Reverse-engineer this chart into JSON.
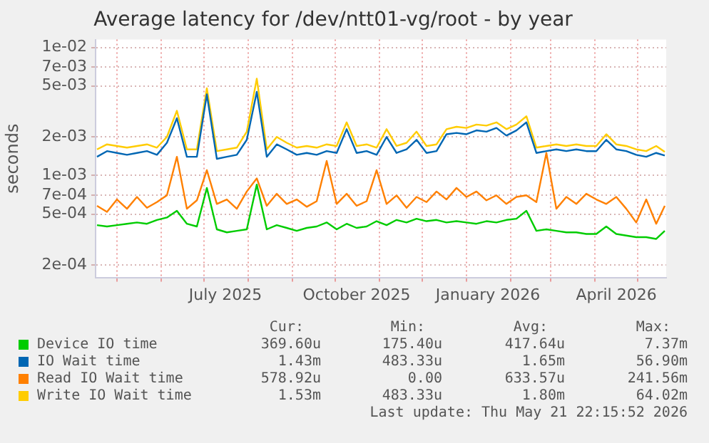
{
  "chart_data": {
    "type": "line",
    "title": "Average latency for /dev/ntt01-vg/root - by year",
    "ylabel": "seconds",
    "x": [
      "2025-04-17",
      "2025-04-24",
      "2025-05-01",
      "2025-05-08",
      "2025-05-15",
      "2025-05-22",
      "2025-05-29",
      "2025-06-05",
      "2025-06-12",
      "2025-06-19",
      "2025-06-26",
      "2025-07-03",
      "2025-07-10",
      "2025-07-17",
      "2025-07-24",
      "2025-07-31",
      "2025-08-07",
      "2025-08-14",
      "2025-08-21",
      "2025-08-28",
      "2025-09-04",
      "2025-09-11",
      "2025-09-18",
      "2025-09-25",
      "2025-10-02",
      "2025-10-09",
      "2025-10-16",
      "2025-10-23",
      "2025-10-30",
      "2025-11-06",
      "2025-11-13",
      "2025-11-20",
      "2025-11-27",
      "2025-12-04",
      "2025-12-11",
      "2025-12-18",
      "2025-12-25",
      "2026-01-01",
      "2026-01-08",
      "2026-01-15",
      "2026-01-22",
      "2026-01-29",
      "2026-02-05",
      "2026-02-12",
      "2026-02-19",
      "2026-02-26",
      "2026-03-05",
      "2026-03-12",
      "2026-03-19",
      "2026-03-26",
      "2026-04-02",
      "2026-04-09",
      "2026-04-16",
      "2026-04-23",
      "2026-04-30",
      "2026-05-07",
      "2026-05-14",
      "2026-05-20"
    ],
    "series": [
      {
        "name": "Device IO time",
        "color": "#00cc00",
        "values": [
          0.00041,
          0.0004,
          0.00041,
          0.00042,
          0.00043,
          0.00042,
          0.00045,
          0.00047,
          0.00053,
          0.00042,
          0.0004,
          0.0008,
          0.00038,
          0.00036,
          0.00037,
          0.00038,
          0.00085,
          0.00038,
          0.00041,
          0.00039,
          0.00037,
          0.00039,
          0.0004,
          0.00043,
          0.00038,
          0.00042,
          0.00039,
          0.0004,
          0.00044,
          0.00041,
          0.00045,
          0.00043,
          0.00046,
          0.00044,
          0.00045,
          0.00043,
          0.00044,
          0.00043,
          0.00042,
          0.00044,
          0.00043,
          0.00045,
          0.00046,
          0.00053,
          0.00037,
          0.00038,
          0.00037,
          0.00036,
          0.00036,
          0.00035,
          0.00035,
          0.0004,
          0.00035,
          0.00034,
          0.00033,
          0.00033,
          0.00032,
          0.00037
        ]
      },
      {
        "name": "IO Wait time",
        "color": "#0066b3",
        "values": [
          0.0014,
          0.00155,
          0.0015,
          0.00145,
          0.0015,
          0.00155,
          0.00145,
          0.0018,
          0.0028,
          0.0014,
          0.0014,
          0.0043,
          0.00135,
          0.0014,
          0.00145,
          0.0019,
          0.0045,
          0.0014,
          0.00175,
          0.0016,
          0.00145,
          0.0015,
          0.00145,
          0.00155,
          0.0015,
          0.0023,
          0.0015,
          0.00155,
          0.00145,
          0.002,
          0.0015,
          0.0016,
          0.0019,
          0.0015,
          0.00155,
          0.0021,
          0.00215,
          0.0021,
          0.00225,
          0.0022,
          0.00235,
          0.00205,
          0.00225,
          0.0026,
          0.0015,
          0.00155,
          0.0016,
          0.00155,
          0.0016,
          0.00155,
          0.00155,
          0.0019,
          0.0016,
          0.00155,
          0.00145,
          0.0014,
          0.0015,
          0.00143
        ]
      },
      {
        "name": "Read IO Wait time",
        "color": "#ff8000",
        "values": [
          0.00058,
          0.00052,
          0.00065,
          0.00055,
          0.00068,
          0.00056,
          0.00062,
          0.0007,
          0.0014,
          0.00055,
          0.00064,
          0.0011,
          0.0006,
          0.00065,
          0.00055,
          0.00075,
          0.00095,
          0.00058,
          0.00072,
          0.0006,
          0.00065,
          0.00057,
          0.00063,
          0.0013,
          0.0006,
          0.00072,
          0.00058,
          0.00063,
          0.0011,
          0.0006,
          0.0007,
          0.00056,
          0.00068,
          0.00062,
          0.00075,
          0.00065,
          0.0008,
          0.00068,
          0.00075,
          0.00064,
          0.0007,
          0.0006,
          0.00068,
          0.0007,
          0.00062,
          0.0015,
          0.00055,
          0.00068,
          0.0006,
          0.00072,
          0.00065,
          0.0006,
          0.00068,
          0.00055,
          0.00043,
          0.00065,
          0.00042,
          0.00058
        ]
      },
      {
        "name": "Write IO Wait time",
        "color": "#ffcc00",
        "values": [
          0.0016,
          0.00175,
          0.0017,
          0.00165,
          0.0017,
          0.00175,
          0.00165,
          0.002,
          0.0032,
          0.0016,
          0.0016,
          0.0048,
          0.00155,
          0.0016,
          0.00165,
          0.0022,
          0.0057,
          0.0016,
          0.002,
          0.0018,
          0.00165,
          0.0017,
          0.00165,
          0.00175,
          0.0017,
          0.0026,
          0.0017,
          0.00175,
          0.00165,
          0.0023,
          0.0017,
          0.0018,
          0.0022,
          0.0017,
          0.00175,
          0.0023,
          0.0024,
          0.00235,
          0.0025,
          0.00245,
          0.0026,
          0.0023,
          0.0025,
          0.0029,
          0.00165,
          0.0017,
          0.00175,
          0.0017,
          0.00175,
          0.0017,
          0.0017,
          0.0021,
          0.00175,
          0.0017,
          0.0016,
          0.00155,
          0.0017,
          0.00153
        ]
      }
    ],
    "xlim": [
      "2025-04-16",
      "2026-05-21"
    ],
    "xticks": [
      {
        "value": "2025-05-01",
        "label": null
      },
      {
        "value": "2025-06-01",
        "label": null
      },
      {
        "value": "2025-07-01",
        "label": null
      },
      {
        "value": "2025-07-16",
        "label": "July 2025"
      },
      {
        "value": "2025-08-01",
        "label": null
      },
      {
        "value": "2025-09-01",
        "label": null
      },
      {
        "value": "2025-10-01",
        "label": null
      },
      {
        "value": "2025-10-16",
        "label": "October 2025"
      },
      {
        "value": "2025-11-01",
        "label": null
      },
      {
        "value": "2025-12-01",
        "label": null
      },
      {
        "value": "2026-01-01",
        "label": null
      },
      {
        "value": "2026-01-16",
        "label": "January 2026"
      },
      {
        "value": "2026-02-01",
        "label": null
      },
      {
        "value": "2026-03-01",
        "label": null
      },
      {
        "value": "2026-04-01",
        "label": null
      },
      {
        "value": "2026-04-16",
        "label": "April 2026"
      },
      {
        "value": "2026-05-01",
        "label": null
      }
    ],
    "ylim": [
      0.00016,
      0.0115
    ],
    "yticks": [
      {
        "value": 0.0002,
        "label": "2e-04"
      },
      {
        "value": 0.0005,
        "label": "5e-04"
      },
      {
        "value": 0.0007,
        "label": "7e-04"
      },
      {
        "value": 0.001,
        "label": "1e-03"
      },
      {
        "value": 0.002,
        "label": "2e-03"
      },
      {
        "value": 0.005,
        "label": "5e-03"
      },
      {
        "value": 0.007,
        "label": "7e-03"
      },
      {
        "value": 0.01,
        "label": "1e-02"
      }
    ],
    "log": "y",
    "grid": true,
    "legend": "bottom",
    "marker": "none",
    "line_style": "solid",
    "annotations": [
      "Cur:",
      "Min:",
      "Avg:",
      "Max:",
      "369.60u",
      "175.40u",
      "417.64u",
      "7.37m",
      "1.43m",
      "483.33u",
      "1.65m",
      "56.90m",
      "578.92u",
      "0.00",
      "633.57u",
      "241.56m",
      "1.53m",
      "483.33u",
      "1.80m",
      "64.02m",
      "Last update: Thu May 21 22:15:52 2026"
    ]
  }
}
